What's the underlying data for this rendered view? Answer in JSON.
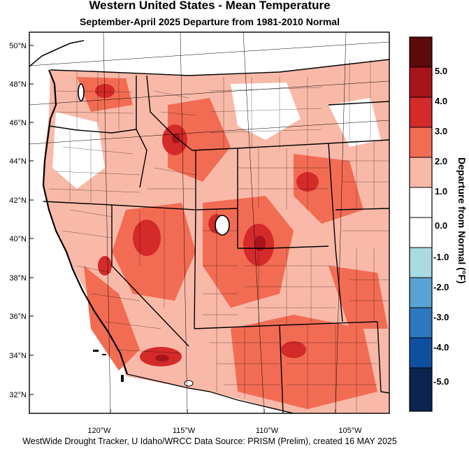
{
  "title": "Western United States - Mean Temperature",
  "subtitle": "September-April 2025  Departure from 1981-2010 Normal",
  "footer": "WestWide Drought Tracker, U Idaho/WRCC Data Source: PRISM (Prelim), created 16 MAY 2025",
  "colorbar": {
    "title": "Departure from Normal (°F)",
    "bins": [
      {
        "color": "#5c0a0a"
      },
      {
        "color": "#a8141c"
      },
      {
        "color": "#d42a2a"
      },
      {
        "color": "#f26c53"
      },
      {
        "color": "#f9b9a8"
      },
      {
        "color": "#ffffff"
      },
      {
        "color": "#ffffff"
      },
      {
        "color": "#a8dbe2"
      },
      {
        "color": "#5aa2d2"
      },
      {
        "color": "#2e78c0"
      },
      {
        "color": "#0f4fa0"
      },
      {
        "color": "#0b2450"
      }
    ],
    "labels": [
      "5.0",
      "4.0",
      "3.0",
      "2.0",
      "1.0",
      "0.0",
      "-1.0",
      "-2.0",
      "-3.0",
      "-4.0",
      "-5.0"
    ]
  },
  "lat_labels": [
    "50°N",
    "48°N",
    "46°N",
    "44°N",
    "42°N",
    "40°N",
    "38°N",
    "36°N",
    "34°N",
    "32°N"
  ],
  "lon_labels": [
    "120°W",
    "115°W",
    "110°W",
    "105°W"
  ]
}
